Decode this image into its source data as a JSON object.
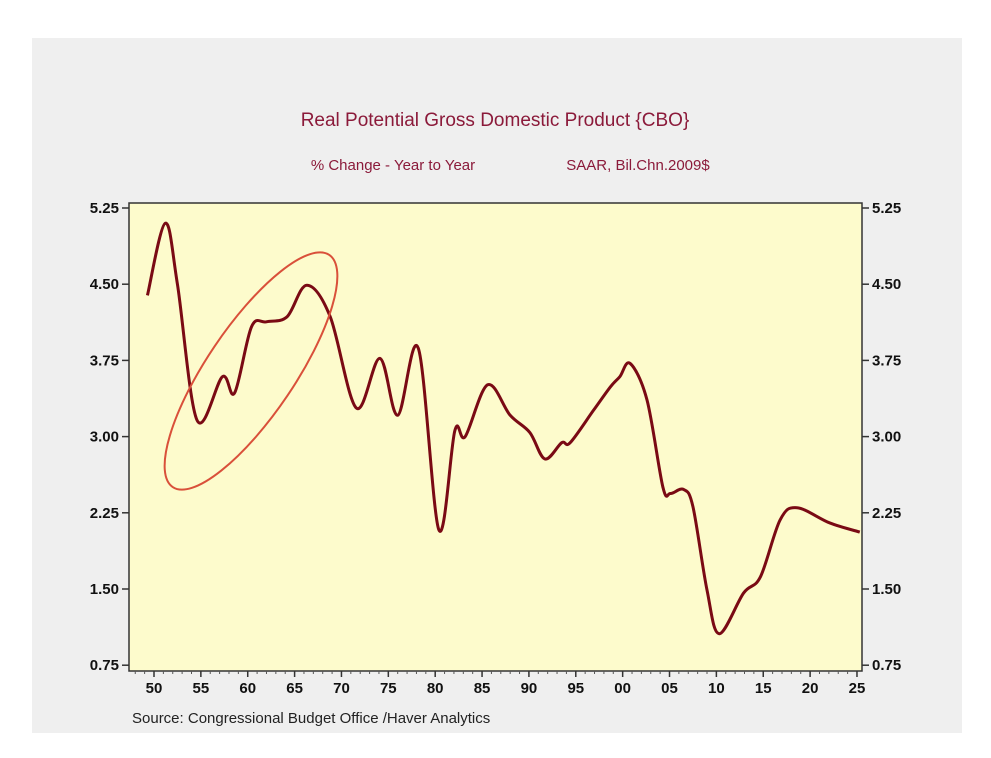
{
  "chart_data": {
    "type": "line",
    "title": "Real Potential Gross Domestic Product {CBO}",
    "subtitle_left": "% Change - Year to Year",
    "subtitle_right": "SAAR, Bil.Chn.2009$",
    "source": "Source:  Congressional Budget Office /Haver Analytics",
    "xlabel": "",
    "ylabel": "",
    "ylim": [
      0.75,
      5.25
    ],
    "xlim": [
      1948,
      2026
    ],
    "y_ticks": [
      "0.75",
      "1.50",
      "2.25",
      "3.00",
      "3.75",
      "4.50",
      "5.25"
    ],
    "x_ticks": [
      {
        "year": 1950,
        "label": "50"
      },
      {
        "year": 1955,
        "label": "55"
      },
      {
        "year": 1960,
        "label": "60"
      },
      {
        "year": 1965,
        "label": "65"
      },
      {
        "year": 1970,
        "label": "70"
      },
      {
        "year": 1975,
        "label": "75"
      },
      {
        "year": 1980,
        "label": "80"
      },
      {
        "year": 1985,
        "label": "85"
      },
      {
        "year": 1990,
        "label": "90"
      },
      {
        "year": 1995,
        "label": "95"
      },
      {
        "year": 2000,
        "label": "00"
      },
      {
        "year": 2005,
        "label": "05"
      },
      {
        "year": 2010,
        "label": "10"
      },
      {
        "year": 2015,
        "label": "15"
      },
      {
        "year": 2020,
        "label": "20"
      },
      {
        "year": 2025,
        "label": "25"
      }
    ],
    "grid": false,
    "dual_y_axis": true,
    "colors": {
      "line": "#7a0a14",
      "plot_bg": "#fdfbcc",
      "panel_bg": "#efefef",
      "title": "#8b1a3a",
      "annotation": "#d9503a"
    },
    "annotation": "ellipse highlighting 1954-1966 rise",
    "series": [
      {
        "x": [
          1949.3,
          1951.2,
          1952.5,
          1954.6,
          1957.3,
          1958.6,
          1960.4,
          1962.0,
          1964.2,
          1966.3,
          1968.8,
          1971.6,
          1974.1,
          1976.0,
          1978.2,
          1980.4,
          1982.1,
          1983.2,
          1985.6,
          1988.0,
          1990.1,
          1991.7,
          1993.5,
          1994.4,
          1996.9,
          1998.7,
          1999.7,
          2000.8,
          2002.6,
          2004.3,
          2005.1,
          2006.5,
          2007.5,
          2009.0,
          2010.3,
          2012.9,
          2014.7,
          2016.8,
          2018.6,
          2022.1,
          2025.3
        ],
        "y": [
          4.39,
          5.1,
          4.5,
          3.16,
          3.59,
          3.43,
          4.08,
          4.13,
          4.18,
          4.49,
          4.18,
          3.28,
          3.77,
          3.21,
          3.87,
          2.08,
          3.06,
          3.0,
          3.51,
          3.21,
          3.04,
          2.78,
          2.94,
          2.94,
          3.26,
          3.49,
          3.59,
          3.72,
          3.36,
          2.5,
          2.44,
          2.48,
          2.31,
          1.49,
          1.06,
          1.46,
          1.62,
          2.18,
          2.3,
          2.15,
          2.06
        ]
      }
    ]
  }
}
